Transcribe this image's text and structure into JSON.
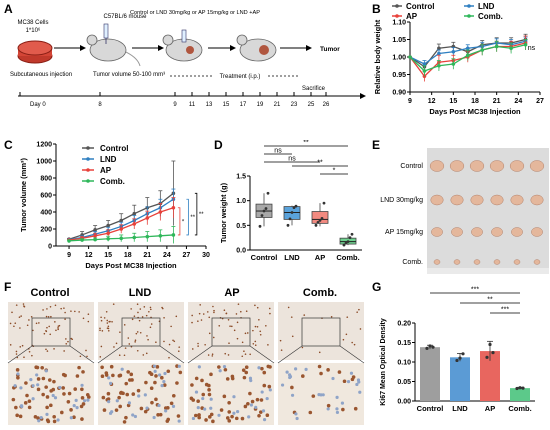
{
  "panels": {
    "A": {
      "letter": "A",
      "cell_label": "MC38 Cells",
      "cell_count": "1*10⁶",
      "mouse_label": "C57BL/6 mouse",
      "treatment_label": "Control or LND 30mg/kg or AP 15mg/kg or LND +AP",
      "tumor_label": "Tumor",
      "subq_label": "Subcutaneous injection",
      "volume_label": "Tumor volume 50-100 mm³",
      "treatment_ip": "Treatment (i.p.)",
      "sacrifice_label": "Sacrifice",
      "day0_label": "Day 0",
      "timeline_days": [
        "8",
        "9",
        "11",
        "13",
        "15",
        "17",
        "19",
        "21",
        "23",
        "25",
        "26"
      ]
    },
    "B": {
      "letter": "B"
    },
    "C": {
      "letter": "C"
    },
    "D": {
      "letter": "D"
    },
    "E": {
      "letter": "E",
      "rows": [
        "Control",
        "LND 30mg/kg",
        "AP 15mg/kg",
        "Comb."
      ]
    },
    "F": {
      "letter": "F",
      "columns": [
        "Control",
        "LND",
        "AP",
        "Comb."
      ]
    },
    "G": {
      "letter": "G"
    }
  },
  "colors": {
    "control": "#555555",
    "lnd": "#2f7fc1",
    "ap": "#e8413a",
    "comb": "#2fb75a"
  },
  "chart_data": [
    {
      "id": "B",
      "type": "line",
      "xlabel": "Days Post MC38 Injection",
      "ylabel": "Relative body weight",
      "xlim": [
        9,
        27
      ],
      "ylim": [
        0.9,
        1.1
      ],
      "xticks": [
        9,
        12,
        15,
        18,
        21,
        24,
        27
      ],
      "yticks": [
        0.9,
        0.95,
        1.0,
        1.05,
        1.1
      ],
      "legend": [
        "Control",
        "LND",
        "AP",
        "Comb."
      ],
      "annotation": "ns",
      "x": [
        9,
        11,
        13,
        15,
        17,
        19,
        21,
        23,
        25
      ],
      "series": [
        {
          "name": "Control",
          "values": [
            1.0,
            0.972,
            1.025,
            1.03,
            1.015,
            1.035,
            1.04,
            1.04,
            1.05
          ],
          "err": [
            0,
            0.01,
            0.012,
            0.012,
            0.01,
            0.012,
            0.015,
            0.015,
            0.015
          ]
        },
        {
          "name": "LND",
          "values": [
            1.0,
            0.98,
            1.01,
            1.015,
            1.025,
            1.03,
            1.04,
            1.035,
            1.045
          ],
          "err": [
            0,
            0.01,
            0.01,
            0.012,
            0.01,
            0.012,
            0.012,
            0.015,
            0.012
          ]
        },
        {
          "name": "AP",
          "values": [
            1.0,
            0.945,
            0.985,
            0.99,
            1.0,
            1.02,
            1.03,
            1.03,
            1.04
          ],
          "err": [
            0,
            0.015,
            0.02,
            0.015,
            0.015,
            0.015,
            0.015,
            0.015,
            0.02
          ]
        },
        {
          "name": "Comb.",
          "values": [
            1.0,
            0.96,
            0.975,
            0.98,
            1.005,
            1.02,
            1.03,
            1.025,
            1.035
          ],
          "err": [
            0,
            0.015,
            0.015,
            0.015,
            0.015,
            0.015,
            0.015,
            0.015,
            0.015
          ]
        }
      ]
    },
    {
      "id": "C",
      "type": "line",
      "xlabel": "Days Post MC38 Injection",
      "ylabel": "Tumor volume (mm³)",
      "xlim": [
        7,
        30
      ],
      "ylim": [
        0,
        1200
      ],
      "xticks": [
        9,
        12,
        15,
        18,
        21,
        24,
        27,
        30
      ],
      "yticks": [
        0,
        200,
        400,
        600,
        800,
        1000,
        1200
      ],
      "legend": [
        "Control",
        "LND",
        "AP",
        "Comb."
      ],
      "sig_labels": [
        "*",
        "**",
        "**"
      ],
      "x": [
        9,
        11,
        13,
        15,
        17,
        19,
        21,
        23,
        25
      ],
      "series": [
        {
          "name": "Control",
          "values": [
            80,
            130,
            190,
            240,
            300,
            380,
            450,
            500,
            620
          ],
          "err": [
            10,
            40,
            50,
            60,
            80,
            100,
            120,
            150,
            380
          ]
        },
        {
          "name": "LND",
          "values": [
            75,
            100,
            140,
            180,
            230,
            300,
            380,
            450,
            550
          ],
          "err": [
            10,
            20,
            30,
            40,
            50,
            60,
            80,
            100,
            120
          ]
        },
        {
          "name": "AP",
          "values": [
            70,
            90,
            120,
            150,
            200,
            260,
            330,
            400,
            450
          ],
          "err": [
            10,
            20,
            30,
            40,
            50,
            60,
            80,
            100,
            120
          ]
        },
        {
          "name": "Comb.",
          "values": [
            60,
            70,
            75,
            85,
            90,
            100,
            110,
            120,
            130
          ],
          "err": [
            10,
            15,
            20,
            30,
            40,
            50,
            60,
            70,
            100
          ]
        }
      ]
    },
    {
      "id": "D",
      "type": "box",
      "ylabel": "Tumor weight (g)",
      "ylim": [
        0,
        1.5
      ],
      "yticks": [
        0.0,
        0.5,
        1.0,
        1.5
      ],
      "categories": [
        "Control",
        "LND",
        "AP",
        "Comb."
      ],
      "boxes": [
        {
          "min": 0.48,
          "q1": 0.66,
          "median": 0.79,
          "q3": 0.93,
          "max": 1.15,
          "points": [
            0.48,
            0.7,
            0.79,
            0.84,
            1.15
          ]
        },
        {
          "min": 0.5,
          "q1": 0.62,
          "median": 0.76,
          "q3": 0.88,
          "max": 0.9,
          "points": [
            0.5,
            0.63,
            0.76,
            0.86,
            0.89
          ]
        },
        {
          "min": 0.48,
          "q1": 0.54,
          "median": 0.62,
          "q3": 0.78,
          "max": 0.95,
          "points": [
            0.5,
            0.56,
            0.6,
            0.64,
            0.95
          ]
        },
        {
          "min": 0.1,
          "q1": 0.12,
          "median": 0.17,
          "q3": 0.24,
          "max": 0.32,
          "points": [
            0.1,
            0.14,
            0.17,
            0.25,
            0.32
          ]
        }
      ],
      "brackets": [
        {
          "from": 0,
          "to": 3,
          "label": "**"
        },
        {
          "from": 0,
          "to": 1,
          "label": "ns"
        },
        {
          "from": 0,
          "to": 2,
          "label": "ns"
        },
        {
          "from": 1,
          "to": 3,
          "label": "**"
        },
        {
          "from": 2,
          "to": 3,
          "label": "*"
        }
      ]
    },
    {
      "id": "G",
      "type": "bar",
      "ylabel": "Ki67 Mean Optical Density",
      "ylim": [
        0,
        0.2
      ],
      "yticks": [
        0.0,
        0.05,
        0.1,
        0.15,
        0.2
      ],
      "categories": [
        "Control",
        "LND",
        "AP",
        "Comb."
      ],
      "values": [
        0.138,
        0.112,
        0.128,
        0.033
      ],
      "err": [
        0.005,
        0.01,
        0.025,
        0.002
      ],
      "points": [
        [
          0.135,
          0.141,
          0.138
        ],
        [
          0.104,
          0.11,
          0.121
        ],
        [
          0.112,
          0.145,
          0.124
        ],
        [
          0.032,
          0.034,
          0.033
        ]
      ],
      "brackets": [
        {
          "from": 0,
          "to": 3,
          "label": "***"
        },
        {
          "from": 1,
          "to": 3,
          "label": "**"
        },
        {
          "from": 2,
          "to": 3,
          "label": "***"
        }
      ]
    }
  ]
}
